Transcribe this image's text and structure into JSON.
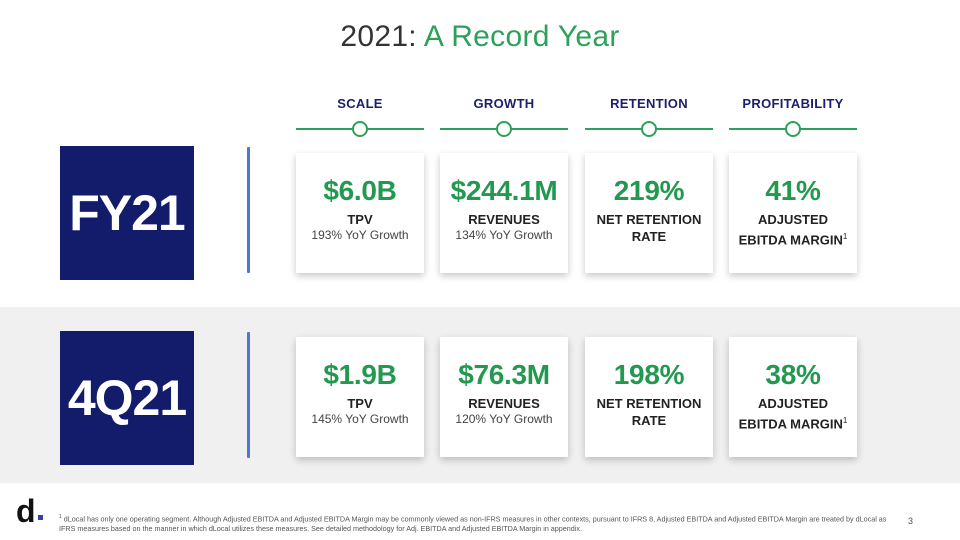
{
  "title": {
    "prefix": "2021:",
    "accent": "A Record Year"
  },
  "columns": [
    {
      "id": "scale",
      "label": "SCALE"
    },
    {
      "id": "growth",
      "label": "GROWTH"
    },
    {
      "id": "retention",
      "label": "RETENTION"
    },
    {
      "id": "profitability",
      "label": "PROFITABILITY"
    }
  ],
  "periods": [
    {
      "label": "FY21",
      "cards": [
        {
          "value": "$6.0B",
          "label": "TPV",
          "sub": "193% YoY Growth"
        },
        {
          "value": "$244.1M",
          "label": "REVENUES",
          "sub": "134% YoY Growth"
        },
        {
          "value": "219%",
          "label_line1": "NET RETENTION",
          "label_line2": "RATE"
        },
        {
          "value": "41%",
          "label_line1": "ADJUSTED",
          "label_line2": "EBITDA MARGIN",
          "sup": "1"
        }
      ]
    },
    {
      "label": "4Q21",
      "cards": [
        {
          "value": "$1.9B",
          "label": "TPV",
          "sub": "145% YoY Growth"
        },
        {
          "value": "$76.3M",
          "label": "REVENUES",
          "sub": "120% YoY Growth"
        },
        {
          "value": "198%",
          "label_line1": "NET RETENTION",
          "label_line2": "RATE"
        },
        {
          "value": "38%",
          "label_line1": "ADJUSTED",
          "label_line2": "EBITDA MARGIN",
          "sup": "1"
        }
      ]
    }
  ],
  "logo": {
    "text": "d"
  },
  "footnote": {
    "marker": "1",
    "text": "dLocal has only one operating segment. Although Adjusted EBITDA and Adjusted EBITDA Margin may be commonly viewed as non-IFRS measures in other contexts, pursuant to IFRS 8, Adjusted EBITDA and Adjusted EBITDA Margin are treated by dLocal as IFRS measures based on the manner in which dLocal utilizes these measures. See detailed methodology for Adj. EBITDA and Adjusted EBITDA Margin in appendix."
  },
  "page_number": "3",
  "colors": {
    "navy": "#131b6b",
    "green": "#22994f",
    "blue_line": "#4a78d4",
    "heading": "#1a1f6b"
  }
}
